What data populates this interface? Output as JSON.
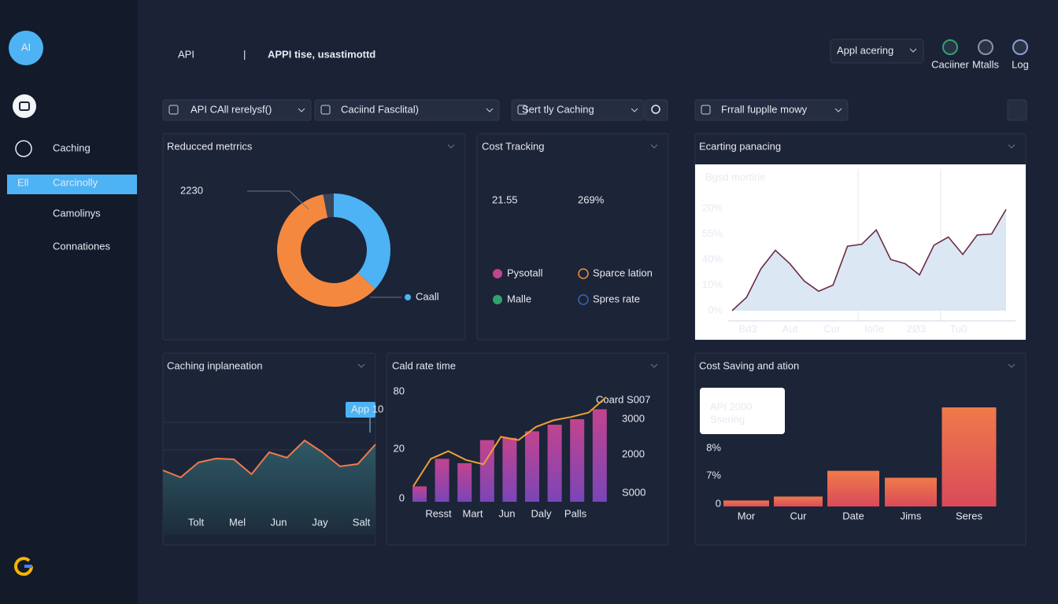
{
  "sidebar": {
    "logo": "AI",
    "active_badge": "Ell",
    "items": [
      "Caching",
      "Carcinolly",
      "Camolinys",
      "Connationes"
    ]
  },
  "header": {
    "title": "API",
    "separator": "|",
    "subtitle": "APPI tise, usastimottd",
    "dropdown": "Appl acering",
    "icons": [
      "Caciiner",
      "Mtalls",
      "Log"
    ]
  },
  "filters": [
    "API CAll rerelysf()",
    "Caciind Fasclital)",
    "Sert tly Caching",
    "Frrall fupplle mowy"
  ],
  "panels": [
    "Reducced metrrics",
    "Cost Tracking",
    "Ecarting panacing",
    "Caching inplaneation",
    "Cald rate time",
    "Cost Saving and ation"
  ],
  "cost_tracking": {
    "figures": [
      "21.55",
      "269%"
    ],
    "legend": [
      {
        "name": "Pysotall",
        "color": "#c2448e",
        "style": "filled"
      },
      {
        "name": "Sparce lation",
        "color": "#f0913c",
        "style": "ring"
      },
      {
        "name": "Malle",
        "color": "#2fa36b",
        "style": "filled"
      },
      {
        "name": "Spres rate",
        "color": "#3a66b8",
        "style": "ring"
      }
    ]
  },
  "chart_data": [
    {
      "type": "donut",
      "annotation": "2230",
      "categories": [
        "Caall",
        null,
        null
      ],
      "values": [
        37,
        60,
        3
      ],
      "colors": [
        "#4db3f5",
        "#f5883f",
        "#3a4456"
      ]
    },
    {
      "type": "line",
      "title": "Bgsd mortirie",
      "x_labels": [
        "Bd3",
        "Aut",
        "Cur",
        "Io0e",
        "2Ø3",
        "Tu0"
      ],
      "y_labels": [
        "20%",
        "55%",
        "40%",
        "10%",
        "0%"
      ],
      "ylim": [
        0,
        100
      ],
      "values": [
        0,
        13,
        41,
        59,
        46,
        29,
        19,
        25,
        63,
        65,
        79,
        50,
        46,
        35,
        64,
        72,
        55,
        74,
        75,
        99
      ],
      "color": "#6b2b45",
      "fill": "#dbe7f3"
    },
    {
      "type": "area",
      "annotation": "App 10",
      "x_labels": [
        "Tolt",
        "Mel",
        "Jun",
        "Jay",
        "Salt"
      ],
      "ylim": [
        0,
        100
      ],
      "values": [
        42,
        33,
        52,
        57,
        56,
        37,
        65,
        58,
        80,
        65,
        47,
        50,
        75
      ],
      "color": "#f07a4a"
    },
    {
      "type": "combo",
      "x_labels": [
        "Resst",
        "Mart",
        "Jun",
        "Daly",
        "Palls"
      ],
      "y_labels": [
        "0",
        "20",
        "80"
      ],
      "y2_labels": [
        "S000",
        "2000",
        "3000"
      ],
      "y2_title": "Coard S007",
      "ylim": [
        0,
        100
      ],
      "series": [
        {
          "type": "bar",
          "color": "#a24bb8",
          "values": [
            14,
            39,
            35,
            56,
            58,
            64,
            70,
            75,
            84
          ]
        },
        {
          "type": "line",
          "color": "#f0a030",
          "values": [
            14,
            39,
            46,
            38,
            34,
            59,
            56,
            68,
            74,
            77,
            81,
            95
          ]
        }
      ]
    },
    {
      "type": "bar",
      "categories": [
        "Mor",
        "Cur",
        "Date",
        "Jims",
        "Seres"
      ],
      "values": [
        6,
        10,
        36,
        29,
        100
      ],
      "ylim": [
        0,
        100
      ],
      "y_labels": [
        "0",
        "7%",
        "8%"
      ],
      "color": "#e8604a",
      "tooltip": {
        "title": "API 2000",
        "subtitle": "Ssering"
      }
    }
  ]
}
